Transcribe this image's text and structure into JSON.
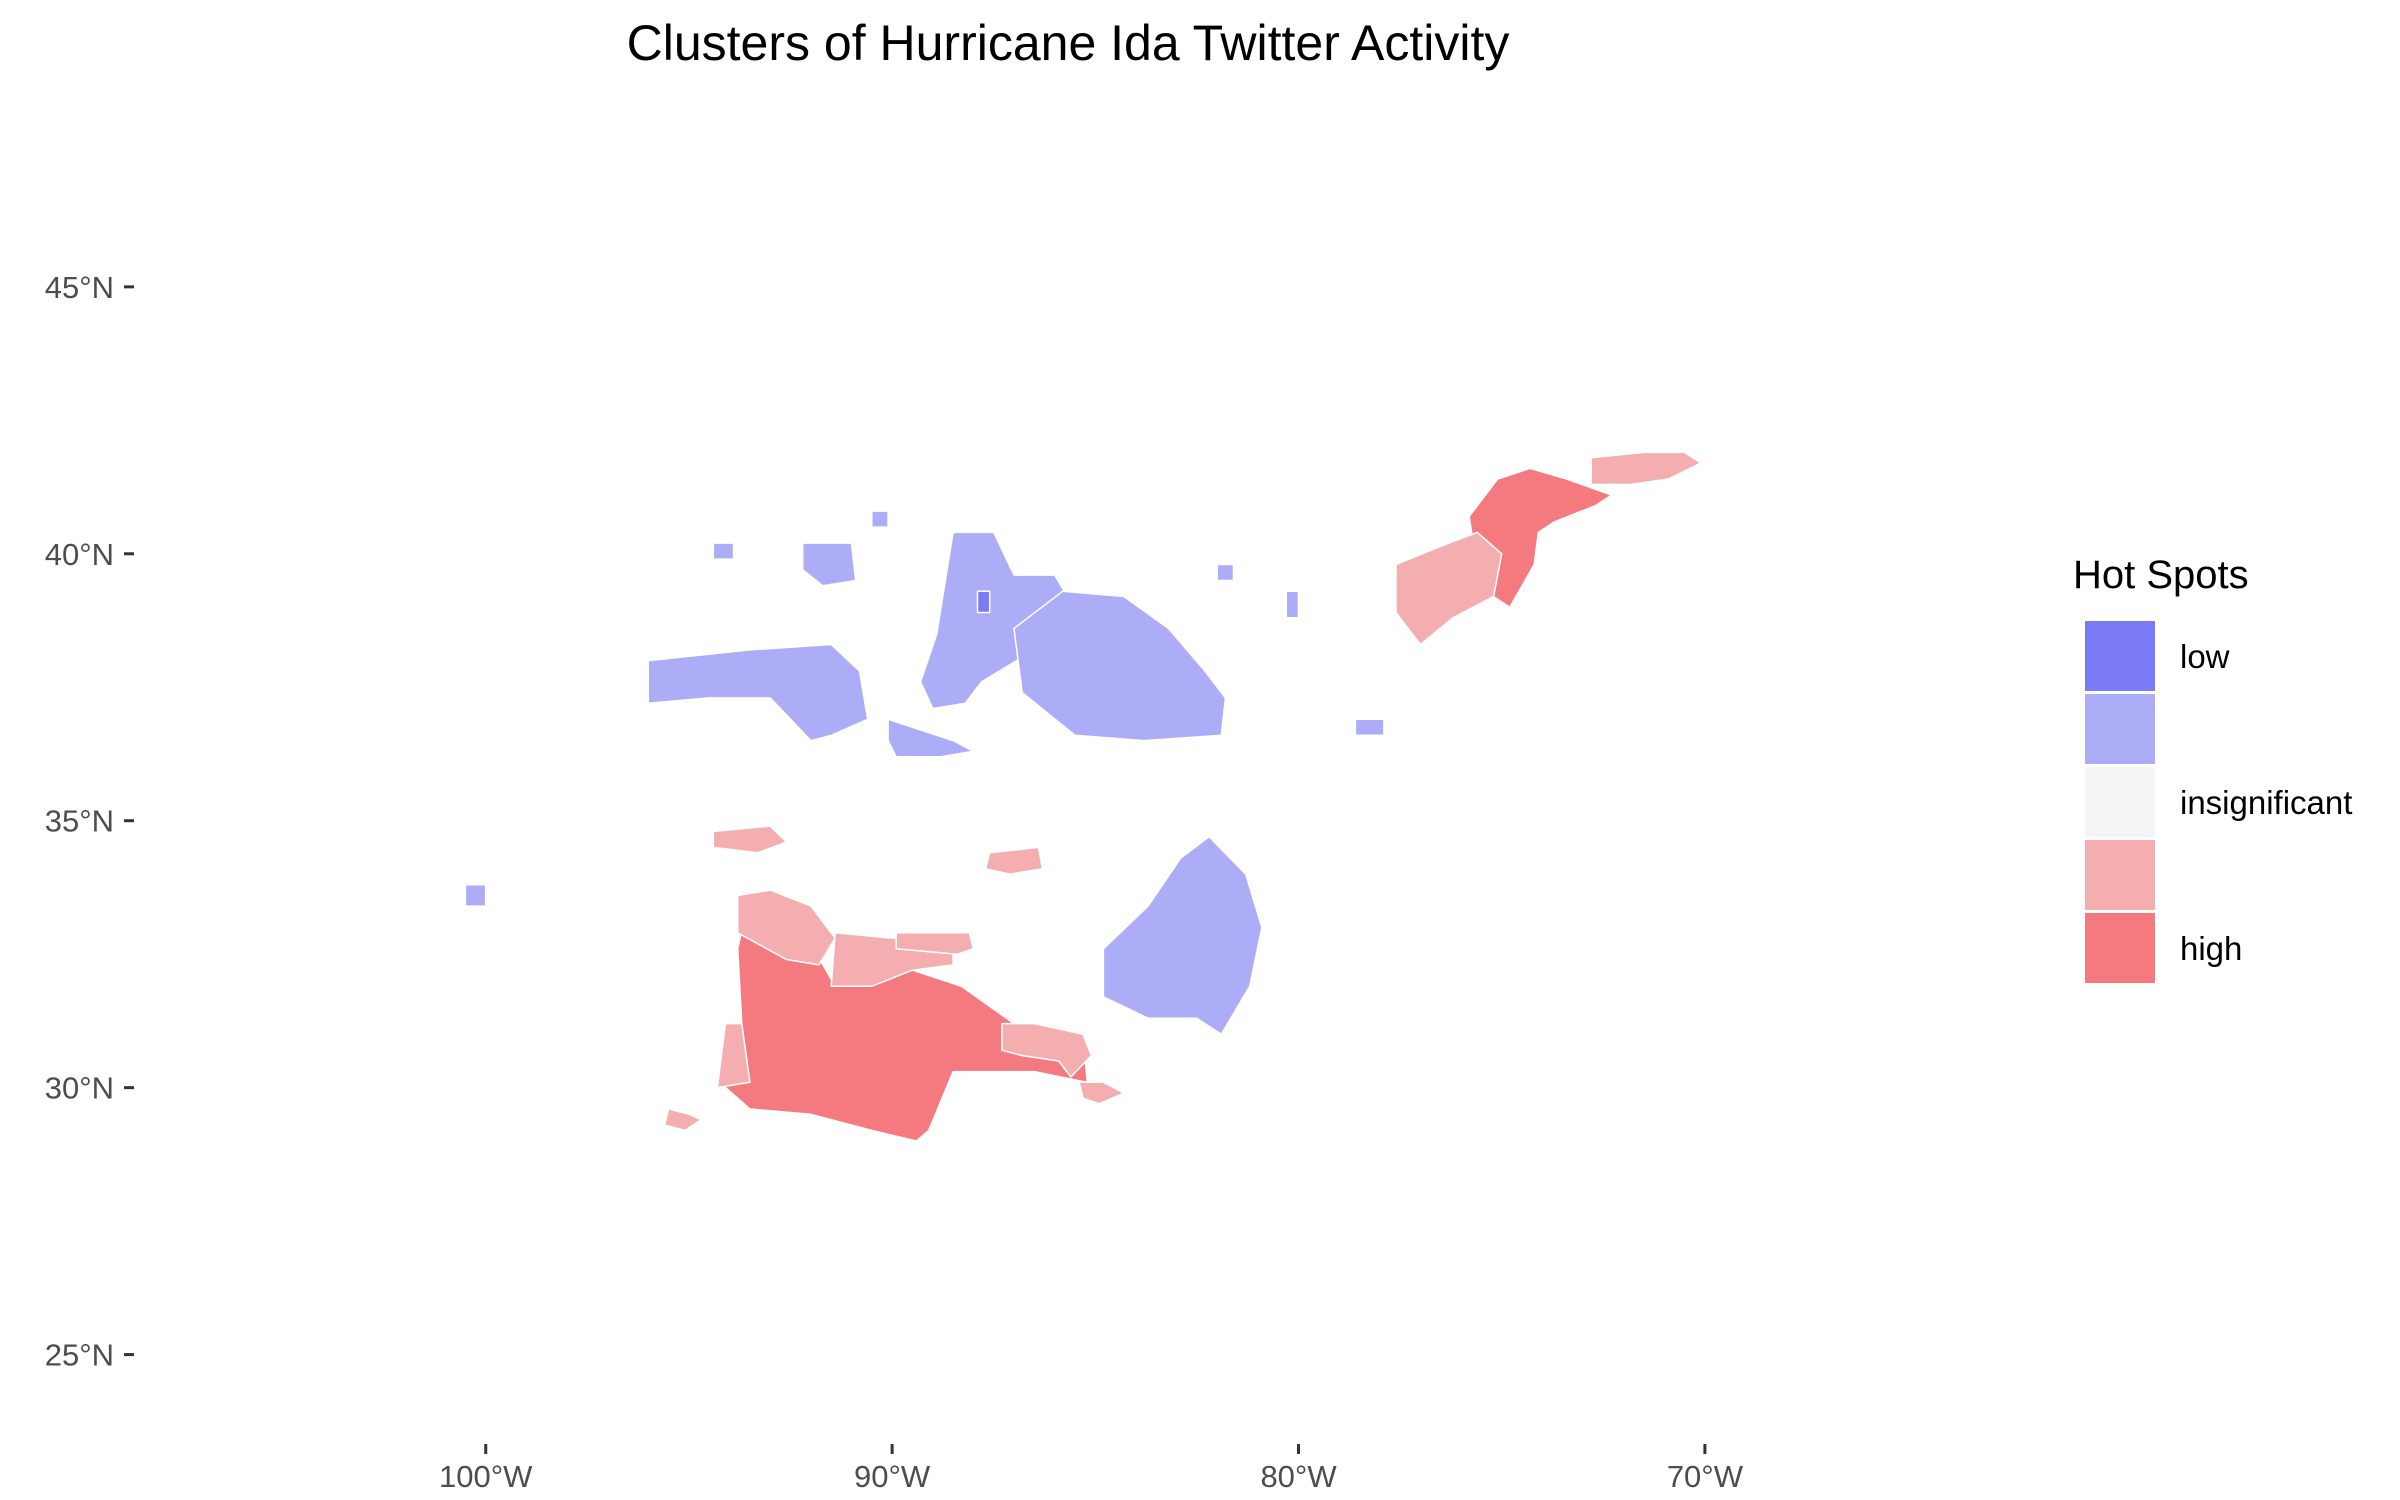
{
  "title": "Clusters of Hurricane Ida Twitter Activity",
  "colors": {
    "low": "#7b7bf5",
    "low_mid": "#adadf7",
    "insignificant": "#f5f5f5",
    "high_mid": "#f5aeb0",
    "high": "#f47a80",
    "border": "#ffffff",
    "tick": "#333333"
  },
  "axes": {
    "x": {
      "type": "longitude",
      "range": [
        -109,
        -62
      ],
      "ticks": [
        {
          "value": -100,
          "label": "100°W"
        },
        {
          "value": -90,
          "label": "90°W"
        },
        {
          "value": -80,
          "label": "80°W"
        },
        {
          "value": -70,
          "label": "70°W"
        }
      ]
    },
    "y": {
      "type": "latitude",
      "range": [
        23.4,
        48.5
      ],
      "ticks": [
        {
          "value": 25,
          "label": "25°N"
        },
        {
          "value": 30,
          "label": "30°N"
        },
        {
          "value": 35,
          "label": "35°N"
        },
        {
          "value": 40,
          "label": "40°N"
        },
        {
          "value": 45,
          "label": "45°N"
        }
      ]
    },
    "grid": false
  },
  "legend": {
    "title": "Hot Spots",
    "placement": "right",
    "entries": [
      {
        "key": "low",
        "label": "low"
      },
      {
        "key": "low_mid",
        "label": ""
      },
      {
        "key": "insignificant",
        "label": "insignificant"
      },
      {
        "key": "high_mid",
        "label": ""
      },
      {
        "key": "high",
        "label": "high"
      }
    ]
  },
  "regions": [
    {
      "name": "missouri-kansas-lowmid",
      "class": "low_mid",
      "points": [
        [
          -96,
          38
        ],
        [
          -93.5,
          38.2
        ],
        [
          -91.5,
          38.3
        ],
        [
          -90.8,
          37.8
        ],
        [
          -90.6,
          36.9
        ],
        [
          -91.5,
          36.6
        ],
        [
          -92,
          36.5
        ],
        [
          -93,
          37.3
        ],
        [
          -94.5,
          37.3
        ],
        [
          -96,
          37.2
        ]
      ]
    },
    {
      "name": "missouri-north-lowmid",
      "class": "low_mid",
      "points": [
        [
          -92.2,
          40.2
        ],
        [
          -91,
          40.2
        ],
        [
          -90.9,
          39.5
        ],
        [
          -91.7,
          39.4
        ],
        [
          -92.2,
          39.7
        ]
      ]
    },
    {
      "name": "iowa-border-lowmid",
      "class": "low_mid",
      "points": [
        [
          -90.5,
          40.8
        ],
        [
          -90.1,
          40.8
        ],
        [
          -90.1,
          40.5
        ],
        [
          -90.5,
          40.5
        ]
      ]
    },
    {
      "name": "nebraska-lowmid",
      "class": "low_mid",
      "points": [
        [
          -94.4,
          40.2
        ],
        [
          -93.9,
          40.2
        ],
        [
          -93.9,
          39.9
        ],
        [
          -94.4,
          39.9
        ]
      ]
    },
    {
      "name": "kansas-west-lowmid",
      "class": "low_mid",
      "points": [
        [
          -100.5,
          33.8
        ],
        [
          -100,
          33.8
        ],
        [
          -100,
          33.4
        ],
        [
          -100.5,
          33.4
        ]
      ]
    },
    {
      "name": "illinois-indiana-lowmid",
      "class": "low_mid",
      "points": [
        [
          -88.5,
          40.4
        ],
        [
          -87.5,
          40.4
        ],
        [
          -87,
          39.6
        ],
        [
          -86,
          39.6
        ],
        [
          -85.3,
          38.7
        ],
        [
          -86.5,
          38.2
        ],
        [
          -87.8,
          37.6
        ],
        [
          -88.2,
          37.2
        ],
        [
          -89,
          37.1
        ],
        [
          -89.3,
          37.6
        ],
        [
          -88.9,
          38.5
        ]
      ]
    },
    {
      "name": "illinois-south-lowmid",
      "class": "low_mid",
      "points": [
        [
          -90.1,
          36.9
        ],
        [
          -88.5,
          36.5
        ],
        [
          -88,
          36.3
        ],
        [
          -88.8,
          36.2
        ],
        [
          -89.9,
          36.2
        ],
        [
          -90.1,
          36.5
        ]
      ]
    },
    {
      "name": "indiana-hotcore-low",
      "class": "low",
      "points": [
        [
          -87.9,
          39.3
        ],
        [
          -87.6,
          39.3
        ],
        [
          -87.6,
          38.9
        ],
        [
          -87.9,
          38.9
        ]
      ]
    },
    {
      "name": "kentucky-west-virginia-lowmid",
      "class": "low_mid",
      "points": [
        [
          -87,
          38.6
        ],
        [
          -85.8,
          39.3
        ],
        [
          -84.3,
          39.2
        ],
        [
          -83.2,
          38.6
        ],
        [
          -82.3,
          37.8
        ],
        [
          -81.8,
          37.3
        ],
        [
          -81.9,
          36.6
        ],
        [
          -83.8,
          36.5
        ],
        [
          -85.5,
          36.6
        ],
        [
          -86.8,
          37.4
        ]
      ]
    },
    {
      "name": "ohio-spot-lowmid",
      "class": "low_mid",
      "points": [
        [
          -82,
          39.8
        ],
        [
          -81.6,
          39.8
        ],
        [
          -81.6,
          39.5
        ],
        [
          -82,
          39.5
        ]
      ]
    },
    {
      "name": "virginia-spot-lowmid",
      "class": "low_mid",
      "points": [
        [
          -80.3,
          39.3
        ],
        [
          -80,
          39.3
        ],
        [
          -80,
          38.8
        ],
        [
          -80.3,
          38.8
        ]
      ]
    },
    {
      "name": "virginia-coast-lowmid",
      "class": "low_mid",
      "points": [
        [
          -78.6,
          36.9
        ],
        [
          -77.9,
          36.9
        ],
        [
          -77.9,
          36.6
        ],
        [
          -78.6,
          36.6
        ]
      ]
    },
    {
      "name": "georgia-carolinas-lowmid",
      "class": "low_mid",
      "points": [
        [
          -82.2,
          34.7
        ],
        [
          -81.3,
          34
        ],
        [
          -80.9,
          33
        ],
        [
          -81.2,
          31.9
        ],
        [
          -81.9,
          31
        ],
        [
          -82.5,
          31.3
        ],
        [
          -83.7,
          31.3
        ],
        [
          -84.8,
          31.7
        ],
        [
          -84.8,
          32.6
        ],
        [
          -83.7,
          33.4
        ],
        [
          -82.9,
          34.3
        ]
      ]
    },
    {
      "name": "louisiana-mississippi-high",
      "class": "high",
      "points": [
        [
          -94.1,
          30
        ],
        [
          -93.7,
          31.2
        ],
        [
          -93.8,
          32.6
        ],
        [
          -93.6,
          33.3
        ],
        [
          -92.5,
          33.3
        ],
        [
          -92,
          32.7
        ],
        [
          -91.4,
          31.9
        ],
        [
          -90.6,
          32
        ],
        [
          -89.5,
          32.2
        ],
        [
          -88.3,
          31.9
        ],
        [
          -87,
          31.2
        ],
        [
          -85.3,
          31
        ],
        [
          -85.2,
          30.1
        ],
        [
          -86.5,
          30.3
        ],
        [
          -88.5,
          30.3
        ],
        [
          -89.1,
          29.2
        ],
        [
          -89.4,
          29
        ],
        [
          -90.5,
          29.2
        ],
        [
          -92,
          29.5
        ],
        [
          -93.5,
          29.6
        ]
      ]
    },
    {
      "name": "louisiana-west-highmid",
      "class": "high_mid",
      "points": [
        [
          -94.1,
          31.2
        ],
        [
          -93.7,
          31.2
        ],
        [
          -93.5,
          30.1
        ],
        [
          -94.3,
          30
        ],
        [
          -94.2,
          30.6
        ]
      ]
    },
    {
      "name": "arkansas-border-highmid",
      "class": "high_mid",
      "points": [
        [
          -93.8,
          33.6
        ],
        [
          -93,
          33.7
        ],
        [
          -92,
          33.4
        ],
        [
          -91.4,
          32.8
        ],
        [
          -91.8,
          32.3
        ],
        [
          -92.6,
          32.4
        ],
        [
          -93.8,
          32.9
        ]
      ]
    },
    {
      "name": "mississippi-central-highmid",
      "class": "high_mid",
      "points": [
        [
          -91.4,
          32.9
        ],
        [
          -90,
          32.8
        ],
        [
          -89,
          32.8
        ],
        [
          -88.5,
          32.8
        ],
        [
          -88.5,
          32.3
        ],
        [
          -89.5,
          32.2
        ],
        [
          -90.5,
          31.9
        ],
        [
          -91.5,
          31.9
        ]
      ]
    },
    {
      "name": "mississippi-northeast-highmid",
      "class": "high_mid",
      "points": [
        [
          -89.9,
          32.9
        ],
        [
          -88.1,
          32.9
        ],
        [
          -88,
          32.6
        ],
        [
          -88.4,
          32.5
        ],
        [
          -89.9,
          32.6
        ]
      ]
    },
    {
      "name": "alabama-highmid",
      "class": "high_mid",
      "points": [
        [
          -87.3,
          31.2
        ],
        [
          -86.5,
          31.2
        ],
        [
          -85.3,
          31
        ],
        [
          -85.1,
          30.6
        ],
        [
          -85.6,
          30.2
        ],
        [
          -85.9,
          30.5
        ],
        [
          -86.8,
          30.6
        ],
        [
          -87.3,
          30.7
        ]
      ]
    },
    {
      "name": "florida-panhandle-highmid",
      "class": "high_mid",
      "points": [
        [
          -85.4,
          30.1
        ],
        [
          -84.8,
          30.1
        ],
        [
          -84.3,
          29.9
        ],
        [
          -84.9,
          29.7
        ],
        [
          -85.3,
          29.8
        ]
      ]
    },
    {
      "name": "texas-coast-highmid",
      "class": "high_mid",
      "points": [
        [
          -95.5,
          29.6
        ],
        [
          -95,
          29.5
        ],
        [
          -94.7,
          29.4
        ],
        [
          -95.1,
          29.2
        ],
        [
          -95.6,
          29.3
        ]
      ]
    },
    {
      "name": "arkansas-north-highmid",
      "class": "high_mid",
      "points": [
        [
          -94.4,
          34.8
        ],
        [
          -93,
          34.9
        ],
        [
          -92.6,
          34.6
        ],
        [
          -93.3,
          34.4
        ],
        [
          -94.4,
          34.5
        ]
      ]
    },
    {
      "name": "tennessee-south-highmid",
      "class": "high_mid",
      "points": [
        [
          -87.6,
          34.4
        ],
        [
          -86.4,
          34.5
        ],
        [
          -86.3,
          34.1
        ],
        [
          -87.1,
          34
        ],
        [
          -87.7,
          34.1
        ]
      ]
    },
    {
      "name": "new-jersey-nyc-high",
      "class": "high",
      "points": [
        [
          -75.8,
          40.7
        ],
        [
          -75.1,
          41.4
        ],
        [
          -74.3,
          41.6
        ],
        [
          -73.4,
          41.4
        ],
        [
          -72.3,
          41.1
        ],
        [
          -72.7,
          40.9
        ],
        [
          -73.7,
          40.6
        ],
        [
          -74.1,
          40.4
        ],
        [
          -74.2,
          39.8
        ],
        [
          -74.8,
          39
        ],
        [
          -75.4,
          39.3
        ],
        [
          -75.7,
          40.2
        ]
      ]
    },
    {
      "name": "pennsylvania-highmid",
      "class": "high_mid",
      "points": [
        [
          -77.6,
          39.8
        ],
        [
          -76.3,
          40.2
        ],
        [
          -75.6,
          40.4
        ],
        [
          -75,
          40
        ],
        [
          -75.2,
          39.2
        ],
        [
          -76.2,
          38.8
        ],
        [
          -77,
          38.3
        ],
        [
          -77.6,
          38.9
        ]
      ]
    },
    {
      "name": "new-england-highmid",
      "class": "high_mid",
      "points": [
        [
          -72.8,
          41.8
        ],
        [
          -71.5,
          41.9
        ],
        [
          -70.5,
          41.9
        ],
        [
          -70.1,
          41.7
        ],
        [
          -70.9,
          41.4
        ],
        [
          -71.8,
          41.3
        ],
        [
          -72.8,
          41.3
        ]
      ]
    }
  ]
}
